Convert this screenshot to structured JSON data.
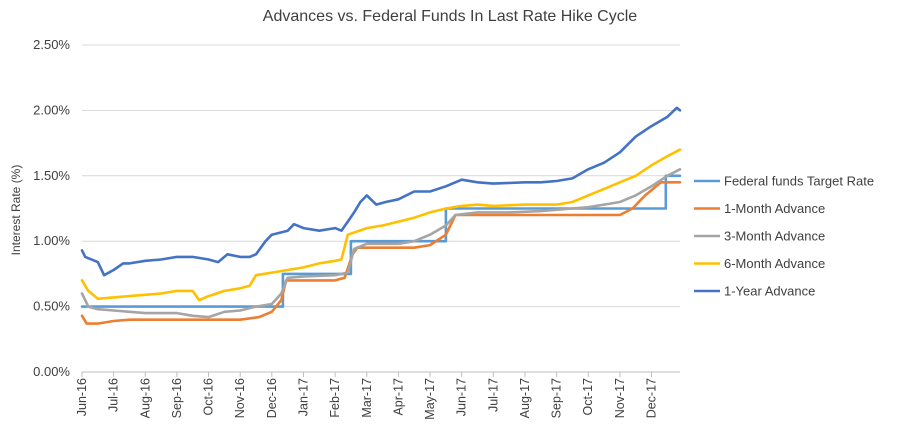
{
  "chart_data": {
    "type": "line",
    "title": "Advances vs. Federal Funds In Last Rate Hike Cycle",
    "xlabel": "",
    "ylabel": "Interest Rate (%)",
    "ylim": [
      0,
      2.5
    ],
    "y_ticks": [
      "0.00%",
      "0.50%",
      "1.00%",
      "1.50%",
      "2.00%",
      "2.50%"
    ],
    "categories": [
      "Jun-16",
      "Jul-16",
      "Aug-16",
      "Sep-16",
      "Oct-16",
      "Nov-16",
      "Dec-16",
      "Jan-17",
      "Feb-17",
      "Mar-17",
      "Apr-17",
      "May-17",
      "Jun-17",
      "Jul-17",
      "Aug-17",
      "Sep-17",
      "Oct-17",
      "Nov-17",
      "Dec-17"
    ],
    "x_range": [
      0,
      18.9
    ],
    "grid": true,
    "legend_position": "right",
    "series": [
      {
        "name": "Federal funds Target Rate",
        "color": "#5B9BD5",
        "points": [
          [
            0,
            0.5
          ],
          [
            6.35,
            0.5
          ],
          [
            6.35,
            0.75
          ],
          [
            8.5,
            0.75
          ],
          [
            8.5,
            1.0
          ],
          [
            11.5,
            1.0
          ],
          [
            11.5,
            1.25
          ],
          [
            18.45,
            1.25
          ],
          [
            18.45,
            1.5
          ],
          [
            18.9,
            1.5
          ]
        ]
      },
      {
        "name": "1-Month Advance",
        "color": "#ED7D31",
        "points": [
          [
            0,
            0.43
          ],
          [
            0.15,
            0.37
          ],
          [
            0.5,
            0.37
          ],
          [
            1.0,
            0.39
          ],
          [
            1.5,
            0.4
          ],
          [
            2.0,
            0.4
          ],
          [
            3.0,
            0.4
          ],
          [
            4.0,
            0.4
          ],
          [
            5.0,
            0.4
          ],
          [
            5.6,
            0.42
          ],
          [
            6.0,
            0.46
          ],
          [
            6.3,
            0.55
          ],
          [
            6.45,
            0.7
          ],
          [
            7.0,
            0.7
          ],
          [
            8.0,
            0.7
          ],
          [
            8.3,
            0.72
          ],
          [
            8.55,
            0.9
          ],
          [
            8.7,
            0.95
          ],
          [
            9.5,
            0.95
          ],
          [
            10.5,
            0.95
          ],
          [
            11.0,
            0.97
          ],
          [
            11.5,
            1.05
          ],
          [
            11.8,
            1.2
          ],
          [
            12.5,
            1.2
          ],
          [
            14.0,
            1.2
          ],
          [
            15.0,
            1.2
          ],
          [
            16.0,
            1.2
          ],
          [
            17.0,
            1.2
          ],
          [
            17.4,
            1.25
          ],
          [
            17.8,
            1.35
          ],
          [
            18.3,
            1.45
          ],
          [
            18.9,
            1.45
          ]
        ]
      },
      {
        "name": "3-Month Advance",
        "color": "#A5A5A5",
        "points": [
          [
            0,
            0.6
          ],
          [
            0.2,
            0.5
          ],
          [
            0.5,
            0.48
          ],
          [
            1.0,
            0.47
          ],
          [
            1.5,
            0.46
          ],
          [
            2.0,
            0.45
          ],
          [
            2.5,
            0.45
          ],
          [
            3.0,
            0.45
          ],
          [
            3.5,
            0.43
          ],
          [
            4.0,
            0.42
          ],
          [
            4.5,
            0.46
          ],
          [
            5.0,
            0.47
          ],
          [
            5.5,
            0.5
          ],
          [
            6.0,
            0.52
          ],
          [
            6.3,
            0.6
          ],
          [
            6.5,
            0.72
          ],
          [
            7.0,
            0.73
          ],
          [
            8.0,
            0.74
          ],
          [
            8.4,
            0.76
          ],
          [
            8.6,
            0.94
          ],
          [
            9.0,
            0.98
          ],
          [
            10.0,
            0.98
          ],
          [
            10.5,
            1.0
          ],
          [
            11.0,
            1.05
          ],
          [
            11.5,
            1.12
          ],
          [
            11.8,
            1.2
          ],
          [
            12.5,
            1.22
          ],
          [
            13.5,
            1.22
          ],
          [
            14.5,
            1.23
          ],
          [
            15.5,
            1.25
          ],
          [
            16.0,
            1.26
          ],
          [
            16.5,
            1.28
          ],
          [
            17.0,
            1.3
          ],
          [
            17.5,
            1.35
          ],
          [
            18.0,
            1.42
          ],
          [
            18.5,
            1.5
          ],
          [
            18.9,
            1.55
          ]
        ]
      },
      {
        "name": "6-Month Advance",
        "color": "#FFC000",
        "points": [
          [
            0,
            0.7
          ],
          [
            0.2,
            0.62
          ],
          [
            0.5,
            0.56
          ],
          [
            1.0,
            0.57
          ],
          [
            1.5,
            0.58
          ],
          [
            2.0,
            0.59
          ],
          [
            2.5,
            0.6
          ],
          [
            3.0,
            0.62
          ],
          [
            3.5,
            0.62
          ],
          [
            3.7,
            0.55
          ],
          [
            4.0,
            0.58
          ],
          [
            4.5,
            0.62
          ],
          [
            5.0,
            0.64
          ],
          [
            5.3,
            0.66
          ],
          [
            5.5,
            0.74
          ],
          [
            6.0,
            0.76
          ],
          [
            6.5,
            0.78
          ],
          [
            7.0,
            0.8
          ],
          [
            7.5,
            0.83
          ],
          [
            8.0,
            0.85
          ],
          [
            8.2,
            0.86
          ],
          [
            8.4,
            1.05
          ],
          [
            9.0,
            1.1
          ],
          [
            9.5,
            1.12
          ],
          [
            10.0,
            1.15
          ],
          [
            10.5,
            1.18
          ],
          [
            11.0,
            1.22
          ],
          [
            11.5,
            1.25
          ],
          [
            12.0,
            1.27
          ],
          [
            12.5,
            1.28
          ],
          [
            13.0,
            1.27
          ],
          [
            14.0,
            1.28
          ],
          [
            15.0,
            1.28
          ],
          [
            15.5,
            1.3
          ],
          [
            16.0,
            1.35
          ],
          [
            16.5,
            1.4
          ],
          [
            17.0,
            1.45
          ],
          [
            17.5,
            1.5
          ],
          [
            18.0,
            1.58
          ],
          [
            18.5,
            1.65
          ],
          [
            18.9,
            1.7
          ]
        ]
      },
      {
        "name": "1-Year Advance",
        "color": "#4472C4",
        "points": [
          [
            0,
            0.93
          ],
          [
            0.1,
            0.88
          ],
          [
            0.5,
            0.84
          ],
          [
            0.7,
            0.74
          ],
          [
            1.0,
            0.78
          ],
          [
            1.3,
            0.83
          ],
          [
            1.5,
            0.83
          ],
          [
            2.0,
            0.85
          ],
          [
            2.5,
            0.86
          ],
          [
            3.0,
            0.88
          ],
          [
            3.5,
            0.88
          ],
          [
            4.0,
            0.86
          ],
          [
            4.3,
            0.84
          ],
          [
            4.6,
            0.9
          ],
          [
            5.0,
            0.88
          ],
          [
            5.3,
            0.88
          ],
          [
            5.5,
            0.9
          ],
          [
            5.8,
            1.0
          ],
          [
            6.0,
            1.05
          ],
          [
            6.5,
            1.08
          ],
          [
            6.7,
            1.13
          ],
          [
            7.0,
            1.1
          ],
          [
            7.5,
            1.08
          ],
          [
            8.0,
            1.1
          ],
          [
            8.2,
            1.08
          ],
          [
            8.4,
            1.15
          ],
          [
            8.6,
            1.22
          ],
          [
            8.8,
            1.3
          ],
          [
            9.0,
            1.35
          ],
          [
            9.3,
            1.28
          ],
          [
            9.6,
            1.3
          ],
          [
            10.0,
            1.32
          ],
          [
            10.5,
            1.38
          ],
          [
            11.0,
            1.38
          ],
          [
            11.5,
            1.42
          ],
          [
            12.0,
            1.47
          ],
          [
            12.5,
            1.45
          ],
          [
            13.0,
            1.44
          ],
          [
            14.0,
            1.45
          ],
          [
            14.5,
            1.45
          ],
          [
            15.0,
            1.46
          ],
          [
            15.5,
            1.48
          ],
          [
            16.0,
            1.55
          ],
          [
            16.5,
            1.6
          ],
          [
            17.0,
            1.68
          ],
          [
            17.5,
            1.8
          ],
          [
            18.0,
            1.88
          ],
          [
            18.5,
            1.95
          ],
          [
            18.8,
            2.02
          ],
          [
            18.9,
            2.0
          ]
        ]
      }
    ]
  }
}
